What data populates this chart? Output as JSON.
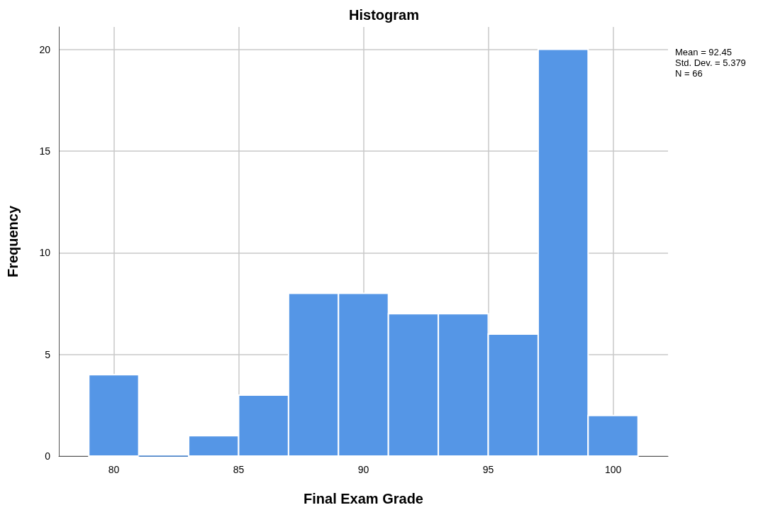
{
  "chart_data": {
    "type": "histogram",
    "title": "Histogram",
    "xlabel": "Final Exam Grade",
    "ylabel": "Frequency",
    "bins": [
      79,
      81,
      83,
      85,
      87,
      89,
      91,
      93,
      95,
      97,
      99,
      101
    ],
    "values": [
      4,
      0,
      1,
      3,
      8,
      8,
      7,
      7,
      6,
      20,
      2
    ],
    "color": "#5596e6",
    "xlim": [
      77.8,
      102.2
    ],
    "xticks": [
      80,
      85,
      90,
      95,
      100
    ],
    "ylim": [
      0,
      21.1
    ],
    "yticks": [
      0,
      5,
      10,
      15,
      20
    ],
    "grid": true,
    "legend": false,
    "annotations": [
      "Mean = 92.45",
      "Std. Dev. = 5.379",
      "N = 66"
    ]
  }
}
